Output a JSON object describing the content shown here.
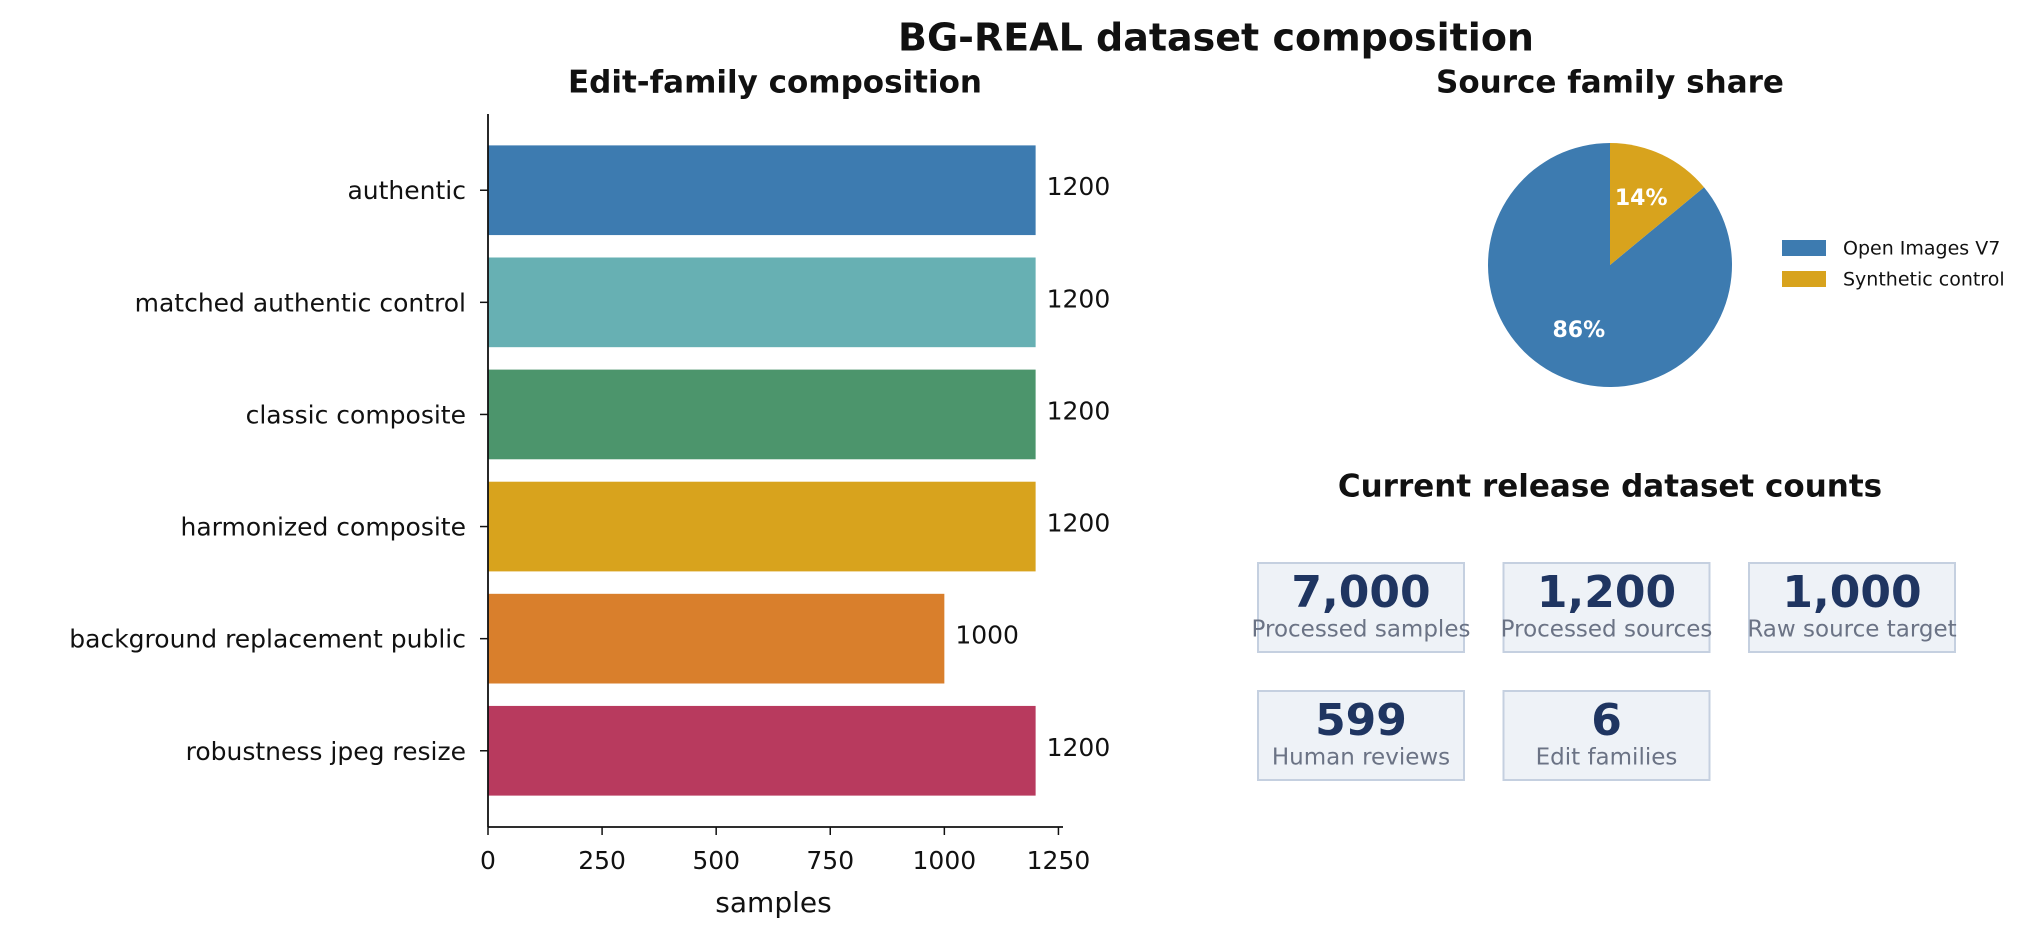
{
  "title": "BG-REAL dataset composition",
  "chart_data": [
    {
      "type": "bar",
      "orientation": "horizontal",
      "title": "Edit-family composition",
      "xlabel": "samples",
      "categories": [
        "authentic",
        "matched authentic control",
        "classic composite",
        "harmonized composite",
        "background replacement public",
        "robustness jpeg resize"
      ],
      "values": [
        1200,
        1200,
        1200,
        1200,
        1000,
        1200
      ],
      "colors": [
        "#3d7bb0",
        "#67b0b3",
        "#4c956c",
        "#d8a31d",
        "#d97f2c",
        "#b83a5e"
      ],
      "xlim": [
        0,
        1260
      ],
      "xticks": [
        0,
        250,
        500,
        750,
        1000,
        1250
      ]
    },
    {
      "type": "pie",
      "title": "Source family share",
      "categories": [
        "Open Images V7",
        "Synthetic control"
      ],
      "values": [
        86,
        14
      ],
      "value_labels": [
        "86%",
        "14%"
      ],
      "colors": [
        "#3d7bb0",
        "#d8a31d"
      ],
      "start_angle": 90,
      "legend": "right"
    }
  ],
  "counts": {
    "title": "Current release dataset counts",
    "cards": [
      {
        "value": "7,000",
        "label": "Processed samples"
      },
      {
        "value": "1,200",
        "label": "Processed sources"
      },
      {
        "value": "1,000",
        "label": "Raw source target"
      },
      {
        "value": "599",
        "label": "Human reviews"
      },
      {
        "value": "6",
        "label": "Edit families"
      }
    ]
  }
}
